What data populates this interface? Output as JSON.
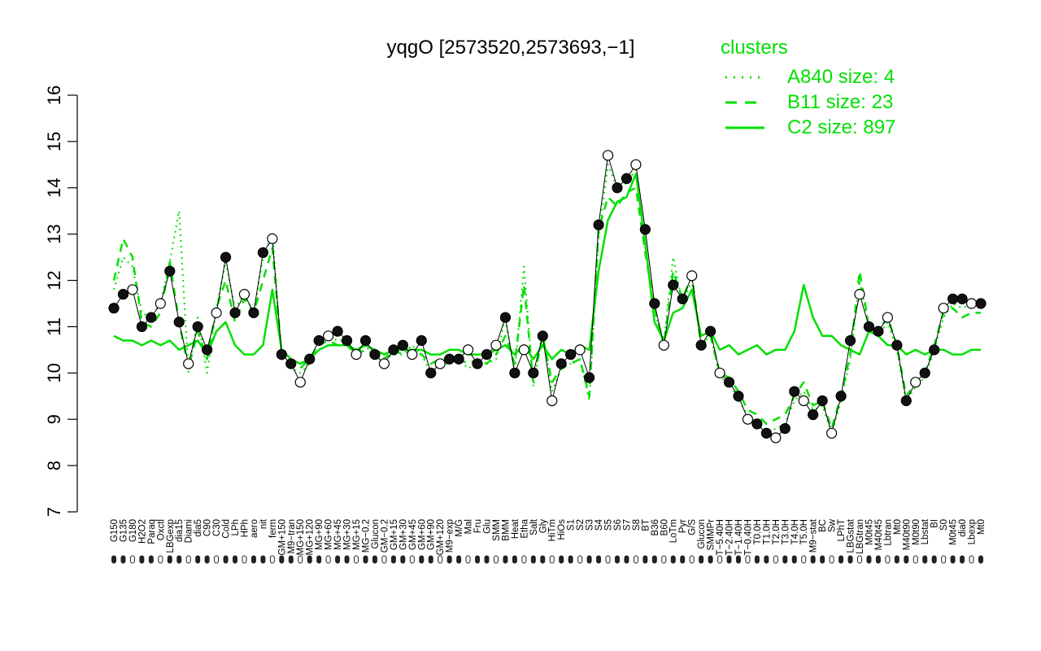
{
  "chart_data": {
    "type": "line",
    "title": "yqgO [2573520,2573693,−1]",
    "xlabel": "",
    "ylabel": "",
    "ylim": [
      7,
      16
    ],
    "yticks": [
      7,
      8,
      9,
      10,
      11,
      12,
      13,
      14,
      15,
      16
    ],
    "grid": false,
    "legend": {
      "title": "clusters",
      "placement": "top-right",
      "entries": [
        {
          "label": "A840 size: 4",
          "style": "dotted"
        },
        {
          "label": "B11 size: 23",
          "style": "dashed"
        },
        {
          "label": "C2 size: 897",
          "style": "solid"
        }
      ]
    },
    "categories": [
      "G150",
      "G135",
      "G180",
      "H2O2",
      "Paraq",
      "Oxctl",
      "LBGexp",
      "dia15",
      "Diami",
      "dia5",
      "C90",
      "C30",
      "Cold",
      "LPh",
      "HPh",
      "aero",
      "nit",
      "ferm",
      "GM+150",
      "M9−tran",
      "MG+150",
      "MG+120",
      "MG+90",
      "MG+60",
      "MG+45",
      "MG+30",
      "MG+15",
      "MG−0.2",
      "Glucon",
      "GM−0.2",
      "GM+15",
      "GM+30",
      "GM+45",
      "GM+60",
      "GM+90",
      "GM+120",
      "M9−exp",
      "M/G",
      "Mal",
      "Fru",
      "Glu",
      "SMM",
      "BMM",
      "Heat",
      "Etha",
      "Salt",
      "Gly",
      "HiTm",
      "HiOs",
      "S1",
      "S2",
      "S3",
      "S4",
      "S5",
      "S6",
      "S7",
      "S8",
      "BT",
      "B36",
      "B60",
      "LoTm",
      "Pyr",
      "G/S",
      "Glucon",
      "SMMPr",
      "T−5.40H",
      "T−2.40H",
      "T−1.40H",
      "T−0.40H",
      "T0.0H",
      "T1.0H",
      "T2.0H",
      "T3.0H",
      "T4.0H",
      "T5.0H",
      "M9−stat",
      "BC",
      "Sw",
      "LPhT",
      "LBGstat",
      "LBGtran",
      "M0t45",
      "M40t45",
      "Lbtran",
      "Mt0",
      "M40t90",
      "M0t90",
      "Lbstat",
      "BI",
      "S0",
      "M0t45",
      "dia0",
      "Lbexp",
      "Mt0"
    ],
    "series": [
      {
        "name": "C2 size: 897",
        "values": [
          10.8,
          10.7,
          10.7,
          10.6,
          10.7,
          10.6,
          10.7,
          10.5,
          10.6,
          10.7,
          10.4,
          10.9,
          11.1,
          10.6,
          10.4,
          10.4,
          10.6,
          11.8,
          10.5,
          10.3,
          10.2,
          10.3,
          10.5,
          10.6,
          10.6,
          10.6,
          10.5,
          10.6,
          10.5,
          10.4,
          10.5,
          10.5,
          10.5,
          10.5,
          10.4,
          10.4,
          10.5,
          10.5,
          10.4,
          10.4,
          10.4,
          10.5,
          10.6,
          10.4,
          10.6,
          10.3,
          10.6,
          10.3,
          10.5,
          10.4,
          10.6,
          10.5,
          12.2,
          13.3,
          13.7,
          13.8,
          14.3,
          12.8,
          11.1,
          10.7,
          11.3,
          11.4,
          11.8,
          10.8,
          10.9,
          10.5,
          10.6,
          10.4,
          10.5,
          10.6,
          10.4,
          10.5,
          10.5,
          10.9,
          11.9,
          11.2,
          10.8,
          10.8,
          10.6,
          10.5,
          10.4,
          10.9,
          10.8,
          10.6,
          10.6,
          10.4,
          10.5,
          10.4,
          10.5,
          10.5,
          10.4,
          10.4,
          10.5,
          10.5
        ]
      },
      {
        "name": "B11 size: 23",
        "values": [
          12.0,
          12.9,
          12.5,
          11.1,
          11.0,
          11.3,
          12.4,
          11.1,
          10.1,
          10.9,
          10.3,
          11.4,
          12.0,
          11.1,
          11.6,
          11.3,
          12.0,
          12.7,
          10.4,
          10.2,
          10.1,
          10.3,
          10.6,
          10.7,
          10.6,
          10.6,
          10.4,
          10.5,
          10.4,
          10.3,
          10.5,
          10.4,
          10.5,
          10.4,
          10.2,
          10.3,
          10.3,
          10.3,
          10.2,
          10.3,
          10.2,
          10.4,
          10.8,
          10.2,
          11.9,
          9.8,
          10.8,
          9.8,
          10.1,
          10.2,
          10.3,
          9.5,
          13.1,
          13.8,
          13.6,
          13.9,
          14.0,
          12.6,
          11.4,
          10.6,
          12.2,
          11.6,
          12.1,
          10.6,
          10.8,
          10.0,
          9.9,
          9.6,
          9.2,
          9.1,
          8.9,
          9.0,
          9.1,
          9.5,
          9.8,
          9.3,
          9.4,
          8.8,
          9.5,
          10.4,
          12.2,
          11.0,
          10.9,
          11.2,
          10.6,
          9.5,
          9.8,
          10.0,
          10.6,
          11.3,
          11.4,
          11.2,
          11.3,
          11.3
        ]
      },
      {
        "name": "A840 size: 4",
        "values": [
          11.8,
          12.5,
          12.3,
          11.3,
          11.2,
          11.5,
          12.4,
          13.5,
          10.0,
          11.2,
          10.0,
          11.4,
          12.4,
          11.4,
          11.7,
          11.3,
          12.5,
          13.0,
          10.3,
          10.1,
          10.0,
          10.2,
          10.7,
          10.8,
          10.7,
          10.7,
          10.4,
          10.6,
          10.3,
          10.3,
          10.4,
          10.4,
          10.6,
          10.4,
          10.0,
          10.2,
          10.2,
          10.3,
          10.1,
          10.2,
          10.2,
          10.3,
          11.2,
          10.0,
          12.3,
          9.7,
          10.9,
          9.6,
          10.1,
          10.2,
          10.3,
          9.4,
          12.9,
          14.5,
          14.0,
          14.1,
          14.4,
          12.7,
          11.3,
          10.7,
          12.5,
          11.5,
          12.0,
          10.6,
          10.8,
          9.9,
          9.8,
          9.4,
          9.1,
          8.9,
          8.7,
          8.8,
          8.9,
          9.4,
          9.6,
          9.2,
          9.3,
          8.7,
          9.4,
          10.3,
          12.0,
          11.0,
          10.8,
          11.1,
          10.5,
          9.4,
          9.7,
          9.9,
          10.5,
          11.2,
          11.5,
          11.4,
          11.5,
          11.4
        ]
      }
    ],
    "points": [
      11.4,
      11.7,
      11.8,
      11.0,
      11.2,
      11.5,
      12.2,
      11.1,
      10.2,
      11.0,
      10.5,
      11.3,
      12.5,
      11.3,
      11.7,
      11.3,
      12.6,
      12.9,
      10.4,
      10.2,
      9.8,
      10.3,
      10.7,
      10.8,
      10.9,
      10.7,
      10.4,
      10.7,
      10.4,
      10.2,
      10.5,
      10.6,
      10.4,
      10.7,
      10.0,
      10.2,
      10.3,
      10.3,
      10.5,
      10.2,
      10.4,
      10.6,
      11.2,
      10.0,
      10.5,
      10.0,
      10.8,
      9.4,
      10.2,
      10.4,
      10.5,
      9.9,
      13.2,
      14.7,
      14.0,
      14.2,
      14.5,
      13.1,
      11.5,
      10.6,
      11.9,
      11.6,
      12.1,
      10.6,
      10.9,
      10.0,
      9.8,
      9.5,
      9.0,
      8.9,
      8.7,
      8.6,
      8.8,
      9.6,
      9.4,
      9.1,
      9.4,
      8.7,
      9.5,
      10.7,
      11.7,
      11.0,
      10.9,
      11.2,
      10.6,
      9.4,
      9.8,
      10.0,
      10.5,
      11.4,
      11.6,
      11.6,
      11.5,
      11.5
    ]
  }
}
